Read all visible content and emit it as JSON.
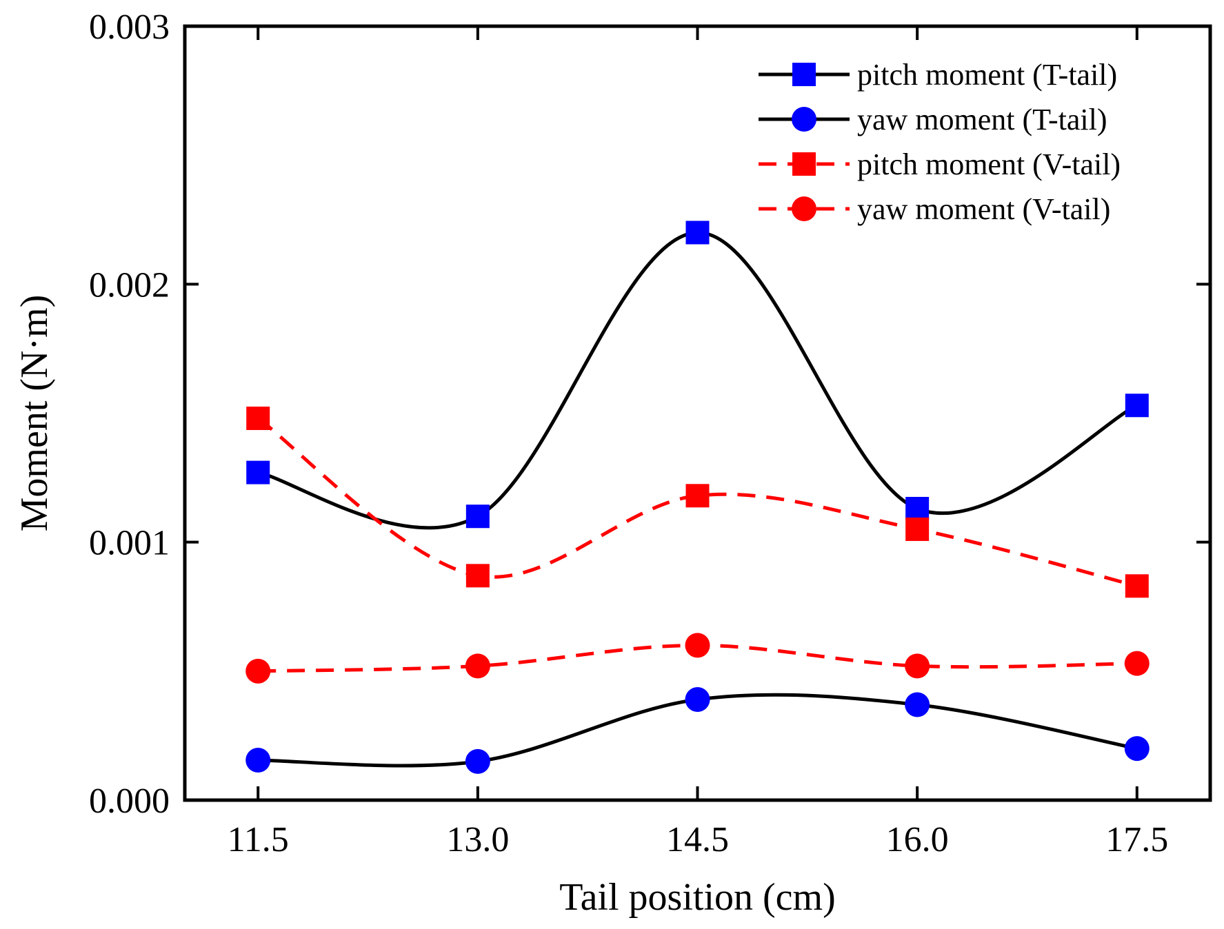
{
  "chart_data": {
    "type": "line",
    "title": "",
    "xlabel": "Tail position (cm)",
    "ylabel": "Moment (N·m)",
    "x": [
      11.5,
      13.0,
      14.5,
      16.0,
      17.5
    ],
    "x_tick_labels": [
      "11.5",
      "13.0",
      "14.5",
      "16.0",
      "17.5"
    ],
    "xlim": [
      11.0,
      18.0
    ],
    "ylim": [
      0.0,
      0.003
    ],
    "y_ticks": [
      0.0,
      0.001,
      0.002,
      0.003
    ],
    "y_tick_labels": [
      "0.000",
      "0.001",
      "0.002",
      "0.003"
    ],
    "grid": false,
    "legend_position": "top-right",
    "series": [
      {
        "name": "pitch moment (T-tail)",
        "values": [
          0.00127,
          0.0011,
          0.0022,
          0.00113,
          0.00153
        ],
        "line_color": "#000000",
        "line_style": "solid",
        "marker": "square",
        "marker_color": "#0000ff"
      },
      {
        "name": "yaw moment (T-tail)",
        "values": [
          0.000155,
          0.00015,
          0.00039,
          0.00037,
          0.0002
        ],
        "line_color": "#000000",
        "line_style": "solid",
        "marker": "circle",
        "marker_color": "#0000ff"
      },
      {
        "name": "pitch moment (V-tail)",
        "values": [
          0.00148,
          0.00087,
          0.00118,
          0.00105,
          0.00083
        ],
        "line_color": "#ff0000",
        "line_style": "dashed",
        "marker": "square",
        "marker_color": "#ff0000"
      },
      {
        "name": "yaw moment (V-tail)",
        "values": [
          0.0005,
          0.00052,
          0.0006,
          0.00052,
          0.00053
        ],
        "line_color": "#ff0000",
        "line_style": "dashed",
        "marker": "circle",
        "marker_color": "#ff0000"
      }
    ]
  }
}
